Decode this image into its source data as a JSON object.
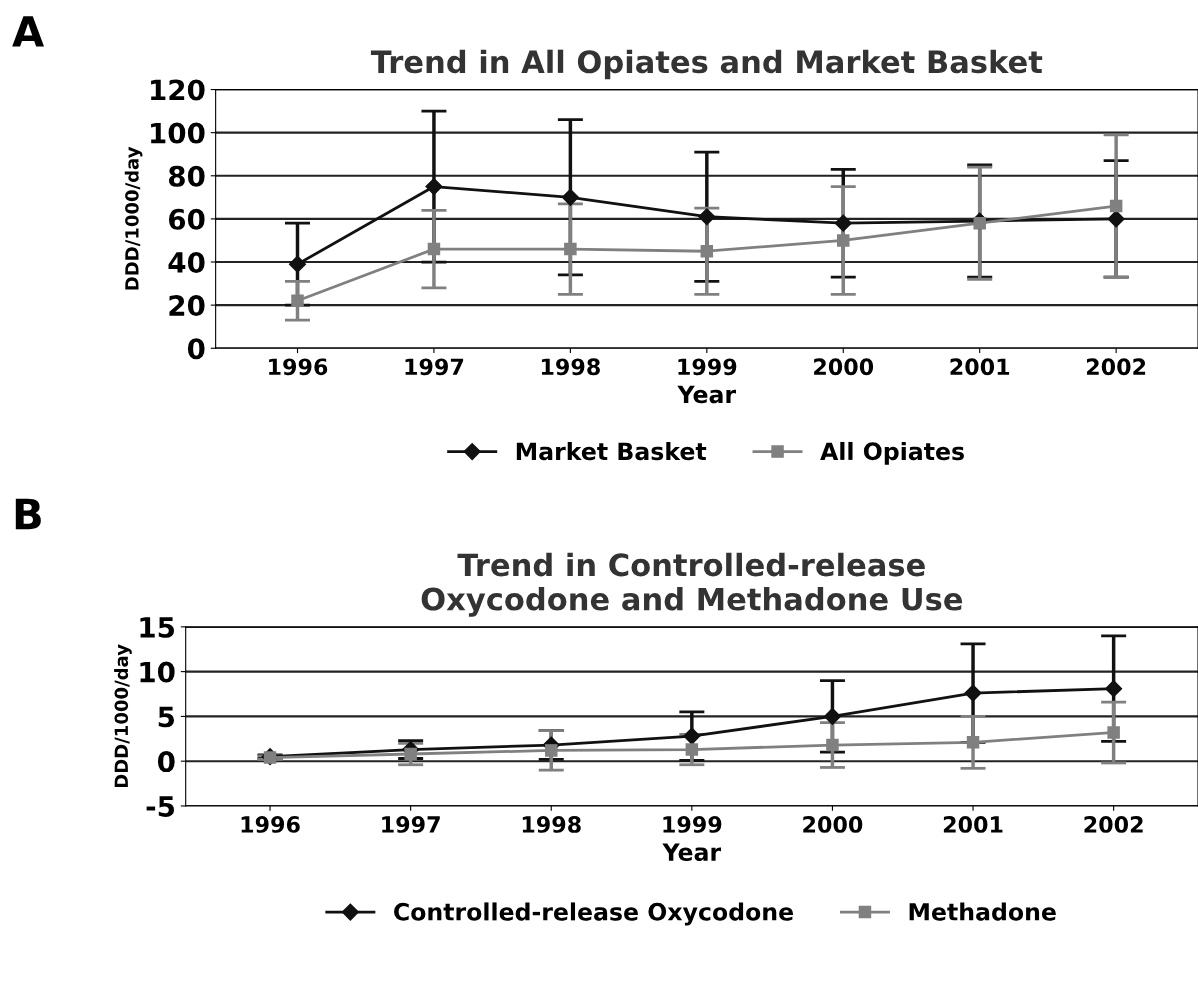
{
  "chart_data": [
    {
      "type": "line",
      "title": "Trend in All Opiates and Market Basket",
      "xlabel": "Year",
      "ylabel": "DDD/1000/day",
      "annotations": [
        "A"
      ],
      "categories": [
        "1996",
        "1997",
        "1998",
        "1999",
        "2000",
        "2001",
        "2002"
      ],
      "ylim": [
        0,
        120
      ],
      "yticks": [
        0,
        20,
        40,
        60,
        80,
        100,
        120
      ],
      "grid": "y",
      "legend": "bottom",
      "series": [
        {
          "name": "Market Basket",
          "color": "#111111",
          "marker": "diamond",
          "values": [
            39,
            75,
            70,
            61,
            58,
            59,
            60
          ],
          "errors": [
            19,
            35,
            36,
            30,
            25,
            26,
            27
          ]
        },
        {
          "name": "All Opiates",
          "color": "#808080",
          "marker": "square",
          "values": [
            22,
            46,
            46,
            45,
            50,
            58,
            66
          ],
          "errors": [
            9,
            18,
            21,
            20,
            25,
            26,
            33
          ]
        }
      ]
    },
    {
      "type": "line",
      "title": "Trend in Controlled-release\nOxycodone and Methadone Use",
      "xlabel": "Year",
      "ylabel": "DDD/1000/day",
      "annotations": [
        "B"
      ],
      "categories": [
        "1996",
        "1997",
        "1998",
        "1999",
        "2000",
        "2001",
        "2002"
      ],
      "ylim": [
        -5,
        15
      ],
      "yticks": [
        -5,
        0,
        5,
        10,
        15
      ],
      "grid": "y",
      "legend": "bottom",
      "series": [
        {
          "name": "Controlled-release Oxycodone",
          "color": "#111111",
          "marker": "diamond",
          "values": [
            0.5,
            1.3,
            1.8,
            2.8,
            5.0,
            7.6,
            8.1
          ],
          "errors": [
            0.2,
            1.0,
            1.6,
            2.7,
            4.0,
            5.5,
            5.9
          ]
        },
        {
          "name": "Methadone",
          "color": "#808080",
          "marker": "square",
          "values": [
            0.4,
            0.8,
            1.2,
            1.3,
            1.8,
            2.1,
            3.2
          ],
          "errors": [
            0.2,
            1.2,
            2.2,
            1.7,
            2.5,
            2.9,
            3.4
          ]
        }
      ]
    }
  ]
}
